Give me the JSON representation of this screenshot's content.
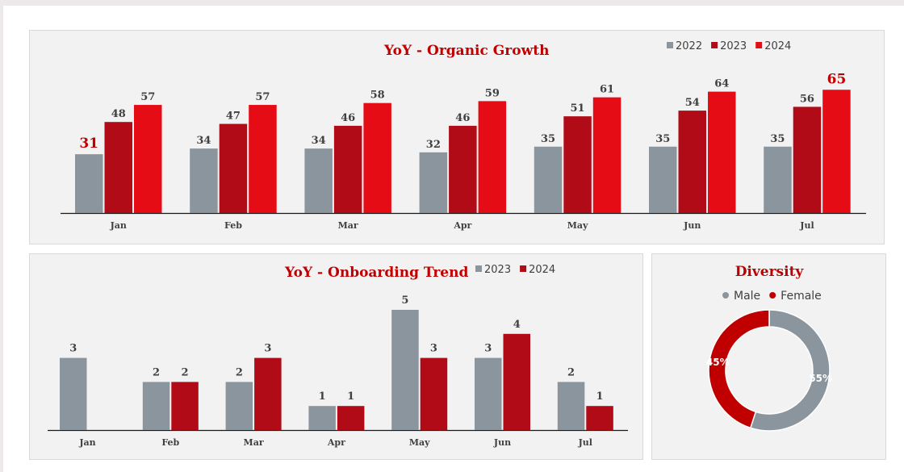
{
  "colors": {
    "gray": "#8b959e",
    "darkred": "#b00b16",
    "red": "#e60c16",
    "accent": "#c00000"
  },
  "chart_data": [
    {
      "type": "bar",
      "title": "YoY - Organic Growth",
      "categories": [
        "Jan",
        "Feb",
        "Mar",
        "Apr",
        "May",
        "Jun",
        "Jul"
      ],
      "series": [
        {
          "name": "2022",
          "color": "#8b959e",
          "values": [
            31,
            34,
            34,
            32,
            35,
            35,
            35
          ]
        },
        {
          "name": "2023",
          "color": "#b00b16",
          "values": [
            48,
            47,
            46,
            46,
            51,
            54,
            56
          ]
        },
        {
          "name": "2024",
          "color": "#e60c16",
          "values": [
            57,
            57,
            58,
            59,
            61,
            64,
            65
          ]
        }
      ],
      "highlights": {
        "min": "31",
        "max": "65"
      },
      "legend": "top-right",
      "ylim": [
        0,
        70
      ],
      "grid": false
    },
    {
      "type": "bar",
      "title": "YoY - Onboarding Trend",
      "categories": [
        "Jan",
        "Feb",
        "Mar",
        "Apr",
        "May",
        "Jun",
        "Jul"
      ],
      "series": [
        {
          "name": "2023",
          "color": "#8b959e",
          "values": [
            3,
            2,
            2,
            1,
            5,
            3,
            2
          ]
        },
        {
          "name": "2024",
          "color": "#b00b16",
          "values": [
            null,
            2,
            3,
            1,
            3,
            4,
            1
          ]
        }
      ],
      "legend": "top-right",
      "ylim": [
        0,
        5.3
      ],
      "grid": false
    },
    {
      "type": "pie",
      "title": "Diversity",
      "donut": true,
      "slices": [
        {
          "name": "Male",
          "value": 55,
          "label": "55%",
          "color": "#8b959e"
        },
        {
          "name": "Female",
          "value": 45,
          "label": "45%",
          "color": "#c00000"
        }
      ],
      "legend": "top"
    }
  ]
}
